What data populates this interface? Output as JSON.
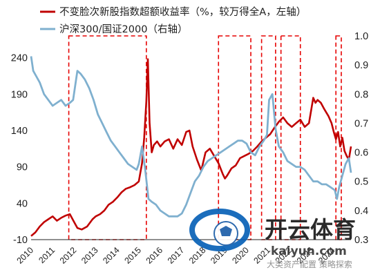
{
  "chart_data": {
    "type": "line",
    "legend_position": "top-left",
    "grid": false,
    "x_ticks": [
      "2010",
      "2011",
      "2012",
      "2013",
      "2014",
      "2015",
      "2016",
      "2017",
      "2018",
      "2019",
      "2020",
      "2021",
      "2022",
      "2023",
      "2024"
    ],
    "x_range": [
      2010.0,
      2024.85
    ],
    "y_left": {
      "ticks": [
        "-10",
        "40",
        "90",
        "140",
        "190",
        "240"
      ],
      "range": [
        -10,
        270
      ]
    },
    "y_right": {
      "ticks": [
        "0.3",
        "0.4",
        "0.5",
        "0.6",
        "0.7",
        "0.8",
        "0.9",
        "1.0"
      ],
      "range": [
        0.3,
        1.0
      ]
    },
    "series": [
      {
        "name": "不变脸次新股指数超额收益率（%，较万得全A，左轴）",
        "color": "#c00000",
        "axis": "left",
        "points": [
          [
            2010.0,
            -5
          ],
          [
            2010.2,
            0
          ],
          [
            2010.4,
            8
          ],
          [
            2010.6,
            14
          ],
          [
            2010.8,
            18
          ],
          [
            2011.0,
            22
          ],
          [
            2011.2,
            16
          ],
          [
            2011.4,
            20
          ],
          [
            2011.6,
            23
          ],
          [
            2011.8,
            25
          ],
          [
            2012.0,
            14
          ],
          [
            2012.15,
            6
          ],
          [
            2012.35,
            4
          ],
          [
            2012.6,
            8
          ],
          [
            2012.85,
            18
          ],
          [
            2013.0,
            22
          ],
          [
            2013.2,
            25
          ],
          [
            2013.4,
            30
          ],
          [
            2013.6,
            38
          ],
          [
            2013.8,
            42
          ],
          [
            2014.0,
            48
          ],
          [
            2014.2,
            55
          ],
          [
            2014.4,
            60
          ],
          [
            2014.6,
            62
          ],
          [
            2014.8,
            65
          ],
          [
            2015.0,
            70
          ],
          [
            2015.15,
            95
          ],
          [
            2015.25,
            130
          ],
          [
            2015.35,
            180
          ],
          [
            2015.42,
            238
          ],
          [
            2015.5,
            150
          ],
          [
            2015.6,
            110
          ],
          [
            2015.7,
            120
          ],
          [
            2015.85,
            125
          ],
          [
            2016.0,
            118
          ],
          [
            2016.2,
            125
          ],
          [
            2016.4,
            128
          ],
          [
            2016.6,
            115
          ],
          [
            2016.8,
            128
          ],
          [
            2017.0,
            120
          ],
          [
            2017.2,
            138
          ],
          [
            2017.35,
            140
          ],
          [
            2017.5,
            118
          ],
          [
            2017.7,
            100
          ],
          [
            2017.9,
            85
          ],
          [
            2018.1,
            110
          ],
          [
            2018.3,
            115
          ],
          [
            2018.5,
            105
          ],
          [
            2018.7,
            95
          ],
          [
            2018.9,
            80
          ],
          [
            2019.0,
            74
          ],
          [
            2019.1,
            78
          ],
          [
            2019.3,
            88
          ],
          [
            2019.5,
            92
          ],
          [
            2019.7,
            102
          ],
          [
            2019.9,
            105
          ],
          [
            2020.1,
            108
          ],
          [
            2020.3,
            112
          ],
          [
            2020.5,
            118
          ],
          [
            2020.7,
            125
          ],
          [
            2020.9,
            130
          ],
          [
            2021.1,
            135
          ],
          [
            2021.3,
            144
          ],
          [
            2021.5,
            152
          ],
          [
            2021.7,
            158
          ],
          [
            2021.9,
            150
          ],
          [
            2022.1,
            145
          ],
          [
            2022.3,
            150
          ],
          [
            2022.5,
            155
          ],
          [
            2022.7,
            145
          ],
          [
            2022.9,
            150
          ],
          [
            2023.1,
            185
          ],
          [
            2023.2,
            178
          ],
          [
            2023.3,
            182
          ],
          [
            2023.45,
            178
          ],
          [
            2023.6,
            170
          ],
          [
            2023.8,
            160
          ],
          [
            2023.95,
            150
          ],
          [
            2024.05,
            138
          ],
          [
            2024.15,
            128
          ],
          [
            2024.25,
            138
          ],
          [
            2024.35,
            118
          ],
          [
            2024.45,
            130
          ],
          [
            2024.55,
            112
          ],
          [
            2024.65,
            105
          ],
          [
            2024.75,
            100
          ],
          [
            2024.85,
            118
          ]
        ]
      },
      {
        "name": "沪深300/国证2000（右轴）",
        "color": "#7fb0cf",
        "axis": "right",
        "points": [
          [
            2010.0,
            0.93
          ],
          [
            2010.1,
            0.88
          ],
          [
            2010.25,
            0.86
          ],
          [
            2010.4,
            0.84
          ],
          [
            2010.6,
            0.8
          ],
          [
            2010.8,
            0.78
          ],
          [
            2011.0,
            0.76
          ],
          [
            2011.2,
            0.77
          ],
          [
            2011.4,
            0.78
          ],
          [
            2011.6,
            0.76
          ],
          [
            2011.8,
            0.77
          ],
          [
            2011.95,
            0.78
          ],
          [
            2012.05,
            0.83
          ],
          [
            2012.15,
            0.88
          ],
          [
            2012.3,
            0.87
          ],
          [
            2012.5,
            0.85
          ],
          [
            2012.7,
            0.82
          ],
          [
            2012.9,
            0.78
          ],
          [
            2013.1,
            0.73
          ],
          [
            2013.3,
            0.7
          ],
          [
            2013.5,
            0.67
          ],
          [
            2013.7,
            0.64
          ],
          [
            2013.9,
            0.62
          ],
          [
            2014.1,
            0.6
          ],
          [
            2014.3,
            0.58
          ],
          [
            2014.5,
            0.56
          ],
          [
            2014.7,
            0.55
          ],
          [
            2014.9,
            0.54
          ],
          [
            2015.0,
            0.56
          ],
          [
            2015.15,
            0.62
          ],
          [
            2015.3,
            0.54
          ],
          [
            2015.45,
            0.44
          ],
          [
            2015.6,
            0.43
          ],
          [
            2015.8,
            0.42
          ],
          [
            2016.0,
            0.4
          ],
          [
            2016.2,
            0.39
          ],
          [
            2016.4,
            0.38
          ],
          [
            2016.6,
            0.38
          ],
          [
            2016.8,
            0.38
          ],
          [
            2017.0,
            0.39
          ],
          [
            2017.2,
            0.42
          ],
          [
            2017.4,
            0.46
          ],
          [
            2017.6,
            0.5
          ],
          [
            2017.8,
            0.52
          ],
          [
            2018.0,
            0.55
          ],
          [
            2018.2,
            0.57
          ],
          [
            2018.4,
            0.58
          ],
          [
            2018.6,
            0.59
          ],
          [
            2018.8,
            0.6
          ],
          [
            2019.0,
            0.61
          ],
          [
            2019.2,
            0.62
          ],
          [
            2019.4,
            0.63
          ],
          [
            2019.6,
            0.64
          ],
          [
            2019.8,
            0.64
          ],
          [
            2020.0,
            0.63
          ],
          [
            2020.2,
            0.6
          ],
          [
            2020.4,
            0.59
          ],
          [
            2020.6,
            0.62
          ],
          [
            2020.8,
            0.64
          ],
          [
            2020.95,
            0.66
          ],
          [
            2021.05,
            0.78
          ],
          [
            2021.2,
            0.8
          ],
          [
            2021.35,
            0.68
          ],
          [
            2021.5,
            0.62
          ],
          [
            2021.7,
            0.6
          ],
          [
            2021.9,
            0.57
          ],
          [
            2022.1,
            0.56
          ],
          [
            2022.3,
            0.55
          ],
          [
            2022.5,
            0.55
          ],
          [
            2022.7,
            0.54
          ],
          [
            2022.9,
            0.52
          ],
          [
            2023.1,
            0.5
          ],
          [
            2023.3,
            0.5
          ],
          [
            2023.5,
            0.49
          ],
          [
            2023.7,
            0.49
          ],
          [
            2023.9,
            0.48
          ],
          [
            2024.1,
            0.47
          ],
          [
            2024.2,
            0.44
          ],
          [
            2024.3,
            0.48
          ],
          [
            2024.45,
            0.52
          ],
          [
            2024.6,
            0.56
          ],
          [
            2024.75,
            0.58
          ],
          [
            2024.85,
            0.53
          ]
        ]
      }
    ],
    "highlight_boxes": [
      {
        "x": [
          2011.75,
          2015.35
        ],
        "ylim_left": [
          -10,
          270
        ]
      },
      {
        "x": [
          2018.7,
          2020.2
        ],
        "ylim_left": [
          -10,
          270
        ]
      },
      {
        "x": [
          2020.7,
          2021.35
        ],
        "ylim_left": [
          -10,
          270
        ]
      },
      {
        "x": [
          2021.6,
          2022.5
        ],
        "ylim_left": [
          -10,
          270
        ]
      },
      {
        "x": [
          2024.15,
          2024.4
        ],
        "ylim_left": [
          -10,
          270
        ]
      }
    ]
  },
  "watermark": {
    "brand": "开云体育",
    "domain": "kaiyun.com",
    "caption": "大类资产配置 策略探索"
  }
}
